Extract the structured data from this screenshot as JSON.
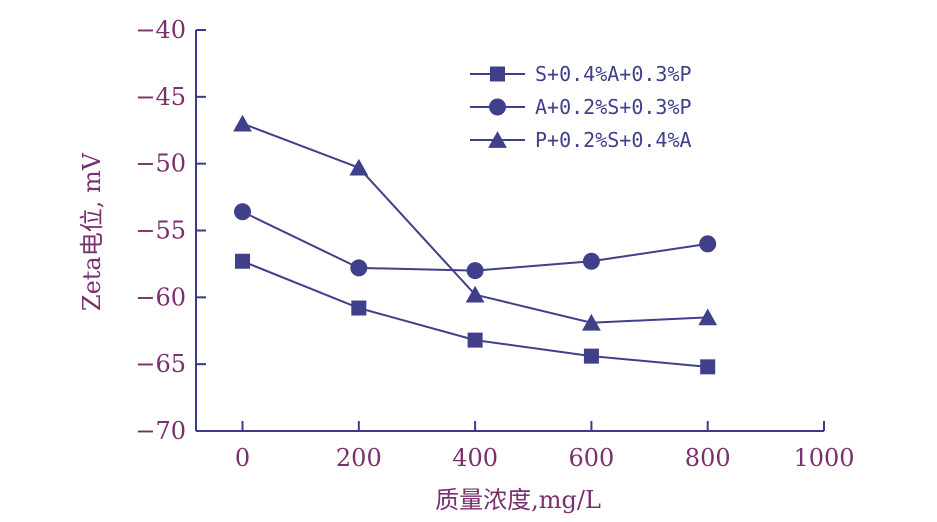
{
  "chart_data": {
    "type": "line",
    "xlabel": "质量浓度,mg/L",
    "ylabel": "Zeta电位, mV",
    "xlim": [
      -80,
      1000
    ],
    "ylim": [
      -70,
      -40
    ],
    "xticks": [
      0,
      200,
      400,
      600,
      800,
      1000
    ],
    "xtick_labels": [
      "0",
      "200",
      "400",
      "600",
      "800",
      "1000"
    ],
    "yticks": [
      -40,
      -45,
      -50,
      -55,
      -60,
      -65,
      -70
    ],
    "ytick_labels": [
      "−40",
      "−45",
      "−50",
      "−55",
      "−60",
      "−65",
      "−70"
    ],
    "grid": false,
    "legend_position": "top-right",
    "series": [
      {
        "name": "S+0.4%A+0.3%P",
        "marker": "square",
        "x": [
          0,
          200,
          400,
          600,
          800
        ],
        "values": [
          -57.3,
          -60.8,
          -63.2,
          -64.4,
          -65.2
        ]
      },
      {
        "name": "A+0.2%S+0.3%P",
        "marker": "circle",
        "x": [
          0,
          200,
          400,
          600,
          800
        ],
        "values": [
          -53.6,
          -57.8,
          -58.0,
          -57.3,
          -56.0
        ]
      },
      {
        "name": "P+0.2%S+0.4%A",
        "marker": "triangle",
        "x": [
          0,
          200,
          400,
          600,
          800
        ],
        "values": [
          -47.0,
          -50.3,
          -59.8,
          -61.9,
          -61.5
        ]
      }
    ],
    "colors": {
      "axis": "#3b3b8a",
      "series": "#3f3f8a",
      "text": "#7a2f6e"
    }
  }
}
